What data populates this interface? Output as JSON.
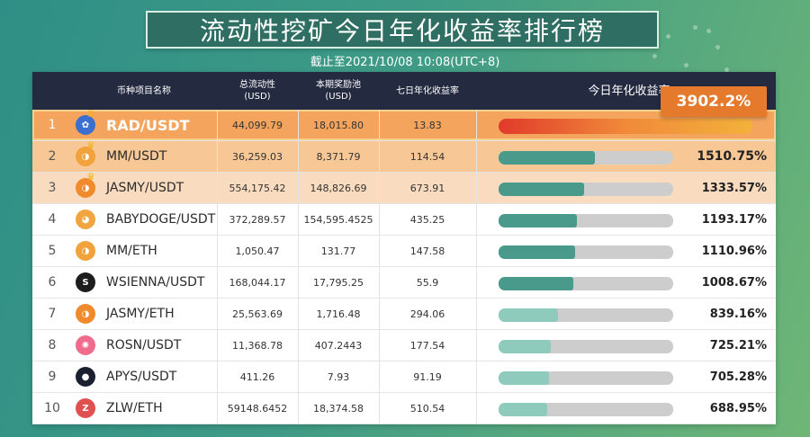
{
  "title": "流动性挖矿今日年化收益率排行榜",
  "subtitle": "截止至2021/10/08 10:08(UTC+8)",
  "headers": {
    "name": "币种项目名称",
    "tvl": "总流动性",
    "tvl_unit": "(USD)",
    "reward": "本期奖励池",
    "reward_unit": "(USD)",
    "apy7": "七日年化收益率",
    "apy_today": "今日年化收益率"
  },
  "top_badge": "3902.2%",
  "rows": [
    {
      "rank": "1",
      "pair": "RAD/USDT",
      "tvl": "44,099.79",
      "reward": "18,015.80",
      "apy7": "13.83",
      "apy": "",
      "fill": 1.0,
      "logo": "rad-logo"
    },
    {
      "rank": "2",
      "pair": "MM/USDT",
      "tvl": "36,259.03",
      "reward": "8,371.79",
      "apy7": "114.54",
      "apy": "1510.75%",
      "fill": 0.55,
      "logo": "mm-logo"
    },
    {
      "rank": "3",
      "pair": "JASMY/USDT",
      "tvl": "554,175.42",
      "reward": "148,826.69",
      "apy7": "673.91",
      "apy": "1333.57%",
      "fill": 0.49,
      "logo": "jasmy-logo"
    },
    {
      "rank": "4",
      "pair": "BABYDOGE/USDT",
      "tvl": "372,289.57",
      "reward": "154,595.4525",
      "apy7": "435.25",
      "apy": "1193.17%",
      "fill": 0.45,
      "logo": "babydoge-logo"
    },
    {
      "rank": "5",
      "pair": "MM/ETH",
      "tvl": "1,050.47",
      "reward": "131.77",
      "apy7": "147.58",
      "apy": "1110.96%",
      "fill": 0.44,
      "logo": "mm-logo"
    },
    {
      "rank": "6",
      "pair": "WSIENNA/USDT",
      "tvl": "168,044.17",
      "reward": "17,795.25",
      "apy7": "55.9",
      "apy": "1008.67%",
      "fill": 0.43,
      "logo": "wsienna-logo"
    },
    {
      "rank": "7",
      "pair": "JASMY/ETH",
      "tvl": "25,563.69",
      "reward": "1,716.48",
      "apy7": "294.06",
      "apy": "839.16%",
      "fill": 0.34,
      "logo": "jasmy-logo"
    },
    {
      "rank": "8",
      "pair": "ROSN/USDT",
      "tvl": "11,368.78",
      "reward": "407.2443",
      "apy7": "177.54",
      "apy": "725.21%",
      "fill": 0.3,
      "logo": "rosn-logo"
    },
    {
      "rank": "9",
      "pair": "APYS/USDT",
      "tvl": "411.26",
      "reward": "7.93",
      "apy7": "91.19",
      "apy": "705.28%",
      "fill": 0.29,
      "logo": "apys-logo"
    },
    {
      "rank": "10",
      "pair": "ZLW/ETH",
      "tvl": "59148.6452",
      "reward": "18,374.58",
      "apy7": "510.54",
      "apy": "688.95%",
      "fill": 0.28,
      "logo": "zlw-logo"
    }
  ],
  "colors": {
    "row1_bg": "#f4a45c",
    "row2_bg": "#f7c795",
    "row3_bg": "#f9dcc0",
    "bar_dark": "#4a9a8c",
    "bar_light": "#8fcbbd",
    "bar_top": "#e24a2a"
  }
}
